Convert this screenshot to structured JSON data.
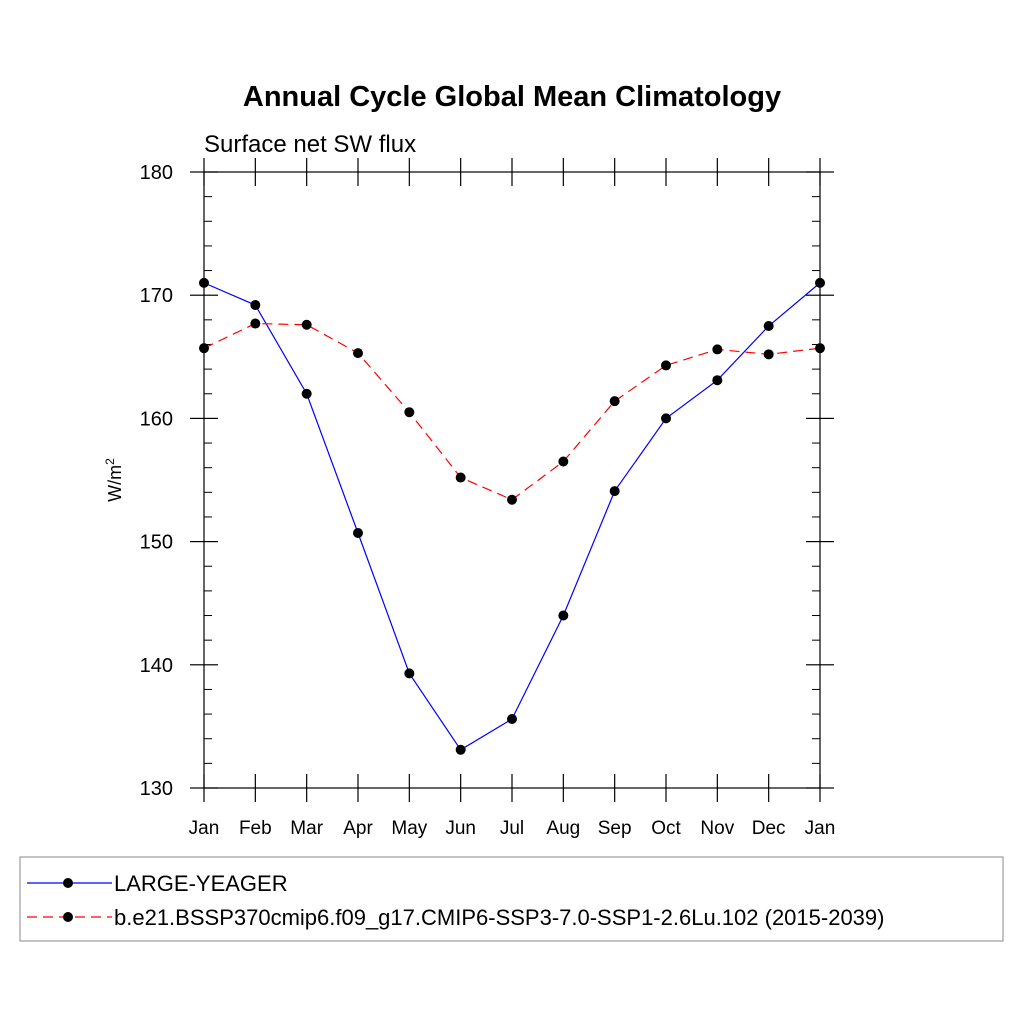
{
  "chart_data": {
    "type": "line",
    "title": "Annual Cycle Global Mean Climatology",
    "subtitle": "Surface net SW flux",
    "ylabel": "W/m",
    "ylabel_superscript": "2",
    "xlabel": "",
    "categories": [
      "Jan",
      "Feb",
      "Mar",
      "Apr",
      "May",
      "Jun",
      "Jul",
      "Aug",
      "Sep",
      "Oct",
      "Nov",
      "Dec",
      "Jan"
    ],
    "ylim": [
      130,
      180
    ],
    "yticks": [
      130,
      140,
      150,
      160,
      170,
      180
    ],
    "y_minor_step": 2,
    "grid": false,
    "legend_position": "bottom",
    "series": [
      {
        "name": "LARGE-YEAGER",
        "color": "#0000ff",
        "dash": "solid",
        "marker": "filled-circle",
        "values": [
          171.0,
          169.2,
          162.0,
          150.7,
          139.3,
          133.1,
          135.6,
          144.0,
          154.1,
          160.0,
          163.1,
          167.5,
          171.0
        ]
      },
      {
        "name": "b.e21.BSSP370cmip6.f09_g17.CMIP6-SSP3-7.0-SSP1-2.6Lu.102 (2015-2039)",
        "color": "#ff0000",
        "dash": "dashed",
        "marker": "filled-circle",
        "values": [
          165.7,
          167.7,
          167.6,
          165.3,
          160.5,
          155.2,
          153.4,
          156.5,
          161.4,
          164.3,
          165.6,
          165.2,
          165.7
        ]
      }
    ]
  }
}
